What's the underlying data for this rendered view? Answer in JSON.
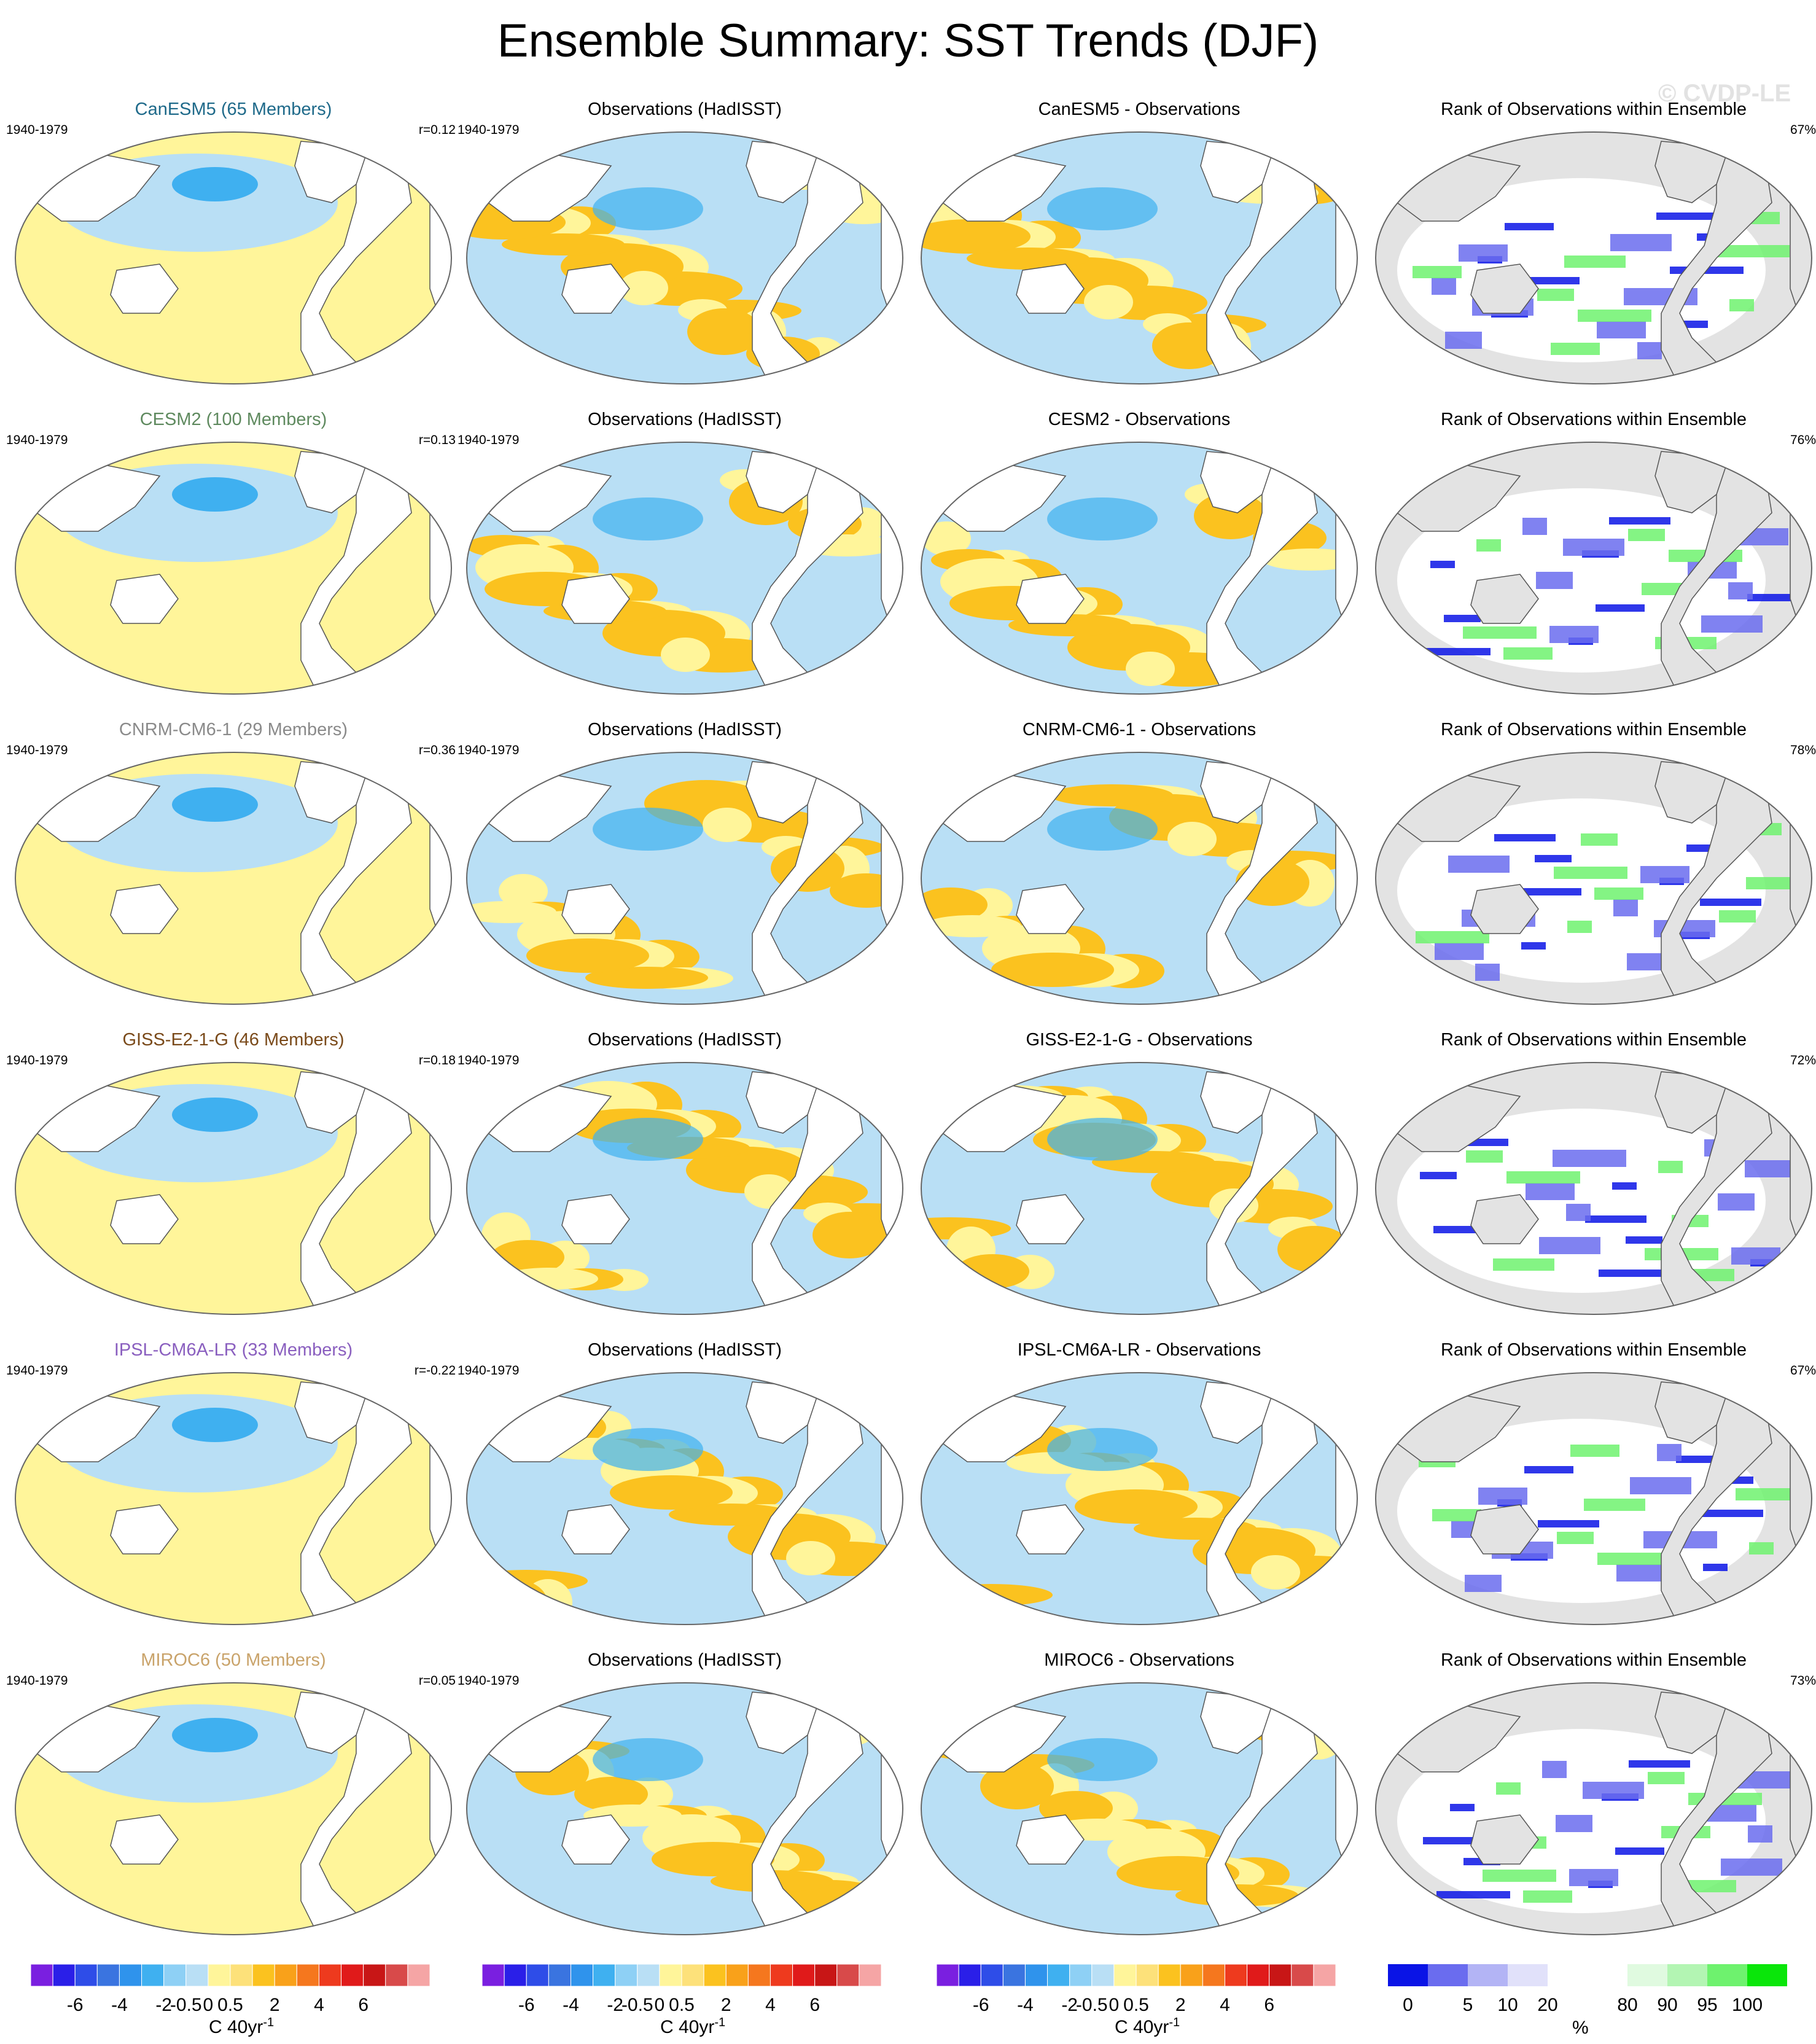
{
  "title": "Ensemble Summary: SST Trends (DJF)",
  "watermark": "© CVDP-LE",
  "period": "1940-1979",
  "obs_title": "Observations (HadISST)",
  "rank_title": "Rank of Observations within Ensemble",
  "rows": [
    {
      "model_title": "CanESM5 (65 Members)",
      "model_color": "#1f6a8a",
      "r": "r=0.12",
      "diff_title": "CanESM5 - Observations",
      "rank_pct": "67%"
    },
    {
      "model_title": "CESM2 (100 Members)",
      "model_color": "#5f8a5f",
      "r": "r=0.13",
      "diff_title": "CESM2 - Observations",
      "rank_pct": "76%"
    },
    {
      "model_title": "CNRM-CM6-1 (29 Members)",
      "model_color": "#8a8a8a",
      "r": "r=0.36",
      "diff_title": "CNRM-CM6-1 - Observations",
      "rank_pct": "78%"
    },
    {
      "model_title": "GISS-E2-1-G (46 Members)",
      "model_color": "#7a4a1a",
      "r": "r=0.18",
      "diff_title": "GISS-E2-1-G - Observations",
      "rank_pct": "72%"
    },
    {
      "model_title": "IPSL-CM6A-LR (33 Members)",
      "model_color": "#8a5fbf",
      "r": "r=-0.22",
      "diff_title": "IPSL-CM6A-LR - Observations",
      "rank_pct": "67%"
    },
    {
      "model_title": "MIROC6 (50 Members)",
      "model_color": "#c9a36a",
      "r": "r=0.05",
      "diff_title": "MIROC6 - Observations",
      "rank_pct": "73%"
    }
  ],
  "trend_colorbar": {
    "colors": [
      "#7a1fe0",
      "#2a1fe8",
      "#2e4de8",
      "#3a74e0",
      "#2f93ec",
      "#3fb0f0",
      "#8ed0f5",
      "#b9dff5",
      "#fff59a",
      "#fde17a",
      "#fbc21f",
      "#f9a11a",
      "#f5771e",
      "#ee3a1e",
      "#e01a1a",
      "#c81616",
      "#d84a4a",
      "#f5a5a5"
    ],
    "ticks": [
      "-6",
      "-4",
      "-2",
      "-0.5",
      "0",
      "0.5",
      "2",
      "4",
      "6"
    ],
    "unit": "C 40yr",
    "unit_sup": "-1"
  },
  "rank_colorbar": {
    "colors": [
      "#0a14e6",
      "#6a6cef",
      "#b3b4f5",
      "#e1e1fa",
      "#ffffff",
      "#ffffff",
      "#e0fae0",
      "#b3f5b3",
      "#6ef26e",
      "#0ae60a"
    ],
    "ticks": [
      "0",
      "5",
      "10",
      "20",
      "80",
      "90",
      "95",
      "100"
    ],
    "unit": "%"
  },
  "palette": {
    "land_white": "#ffffff",
    "land_grey": "#e3e3e3",
    "warm": "#fff59a",
    "warm2": "#fbc21f",
    "cool": "#b9dff5",
    "cool2": "#3fb0f0"
  }
}
